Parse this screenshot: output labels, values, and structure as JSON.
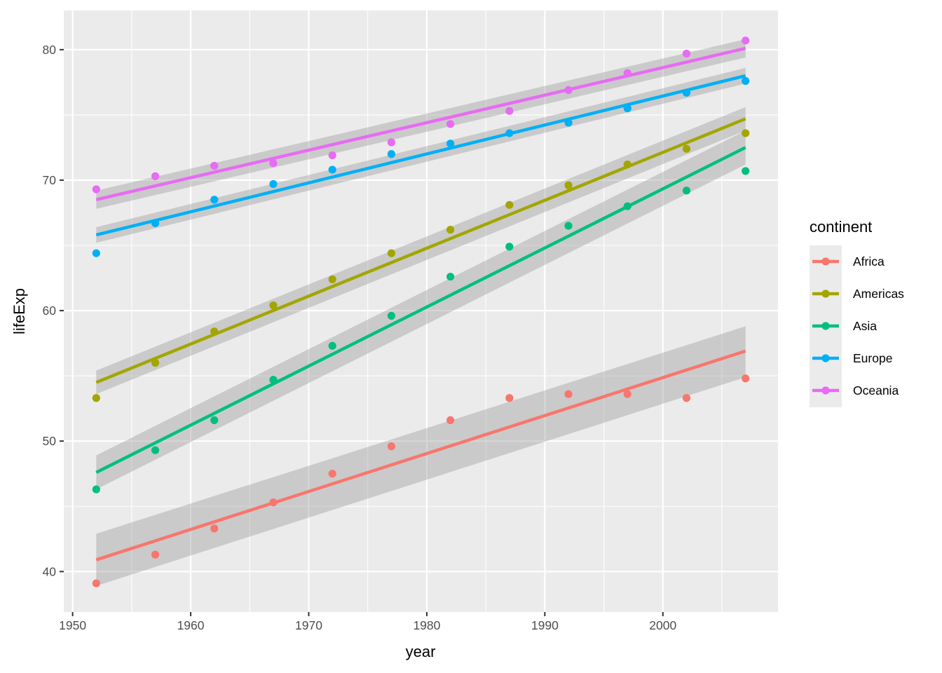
{
  "chart_data": {
    "type": "scatter",
    "title": "",
    "xlabel": "year",
    "ylabel": "lifeExp",
    "xlim": [
      1949.25,
      2009.75
    ],
    "ylim": [
      36.9,
      83.0
    ],
    "x_ticks": [
      1950,
      1960,
      1970,
      1980,
      1990,
      2000
    ],
    "x_tick_labels": [
      "1950",
      "1960",
      "1970",
      "1980",
      "1990",
      "2000"
    ],
    "y_ticks": [
      40,
      50,
      60,
      70,
      80
    ],
    "y_tick_labels": [
      "40",
      "50",
      "60",
      "70",
      "80"
    ],
    "grid": true,
    "legend_position": "right",
    "legend_title": "continent",
    "x": [
      1952,
      1957,
      1962,
      1967,
      1972,
      1977,
      1982,
      1987,
      1992,
      1997,
      2002,
      2007
    ],
    "series": [
      {
        "name": "Africa",
        "color": "#F8766D",
        "values": [
          39.1,
          41.3,
          43.3,
          45.3,
          47.5,
          49.6,
          51.6,
          53.3,
          53.6,
          53.6,
          53.3,
          54.8
        ],
        "fit": [
          40.9,
          56.9
        ],
        "band": [
          [
            38.9,
            42.9
          ],
          [
            54.9,
            58.8
          ]
        ]
      },
      {
        "name": "Americas",
        "color": "#A3A500",
        "values": [
          53.3,
          56.0,
          58.4,
          60.4,
          62.4,
          64.4,
          66.2,
          68.1,
          69.6,
          71.2,
          72.4,
          73.6
        ],
        "fit": [
          54.5,
          74.7
        ],
        "band": [
          [
            53.6,
            55.4
          ],
          [
            73.8,
            75.6
          ]
        ]
      },
      {
        "name": "Asia",
        "color": "#00BF7D",
        "values": [
          46.3,
          49.3,
          51.6,
          54.7,
          57.3,
          59.6,
          62.6,
          64.9,
          66.5,
          68.0,
          69.2,
          70.7
        ],
        "fit": [
          47.6,
          72.5
        ],
        "band": [
          [
            46.3,
            48.9
          ],
          [
            71.2,
            73.8
          ]
        ]
      },
      {
        "name": "Europe",
        "color": "#00B0F6",
        "values": [
          64.4,
          66.7,
          68.5,
          69.7,
          70.8,
          72.0,
          72.8,
          73.6,
          74.4,
          75.5,
          76.7,
          77.6
        ],
        "fit": [
          65.8,
          78.0
        ],
        "band": [
          [
            65.2,
            66.4
          ],
          [
            77.4,
            78.6
          ]
        ]
      },
      {
        "name": "Oceania",
        "color": "#E76BF3",
        "values": [
          69.3,
          70.3,
          71.1,
          71.3,
          71.9,
          72.9,
          74.3,
          75.3,
          76.9,
          78.2,
          79.7,
          80.7
        ],
        "fit": [
          68.5,
          80.1
        ],
        "band": [
          [
            67.8,
            69.2
          ],
          [
            79.4,
            80.8
          ]
        ]
      }
    ]
  }
}
